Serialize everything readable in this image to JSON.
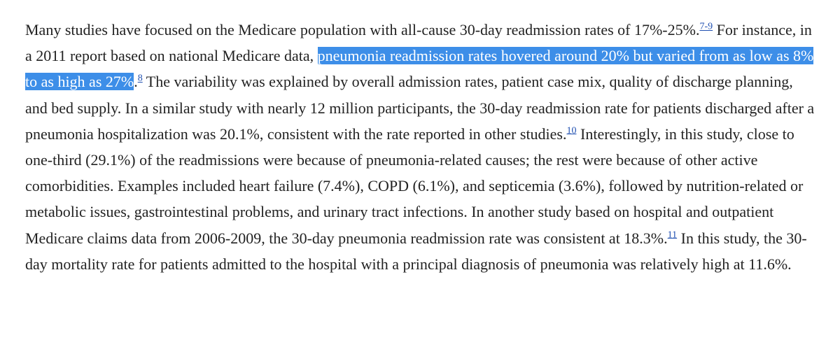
{
  "article": {
    "paragraph": {
      "seg1": "Many studies have focused on the Medicare population with all-cause 30-day readmission rates of 17%-25%.",
      "cite1": "7-9",
      "seg2": " For instance, in a 2011 report based on national Medicare data, ",
      "highlighted": "pneumonia readmission rates hovered around 20% but varied from as low as 8% to as high as 27%",
      "seg3": ".",
      "cite2": "8",
      "seg4": " The variability was explained by overall admission rates, patient case mix, quality of discharge planning, and bed supply. In a similar study with nearly 12 million participants, the 30-day readmission rate for patients discharged after a pneumonia hospitalization was 20.1%, consistent with the rate reported in other studies.",
      "cite3": "10",
      "seg5": " Interestingly, in this study, close to one-third (29.1%) of the readmissions were because of pneumonia-related causes; the rest were because of other active comorbidities. Examples included heart failure (7.4%), COPD (6.1%), and septicemia (3.6%), followed by nutrition-related or metabolic issues, gastrointestinal problems, and urinary tract infections. In another study based on hospital and outpatient Medicare claims data from 2006-2009, the 30-day pneumonia readmission rate was consistent at 18.3%.",
      "cite4": "11",
      "seg6": " In this study, the 30-day mortality rate for patients admitted to the hospital with a principal diagnosis of pneumonia was relatively high at 11.6%."
    }
  },
  "colors": {
    "text": "#222222",
    "highlight_bg": "#3d8ee8",
    "highlight_text": "#ffffff",
    "link": "#1f4fb0"
  }
}
